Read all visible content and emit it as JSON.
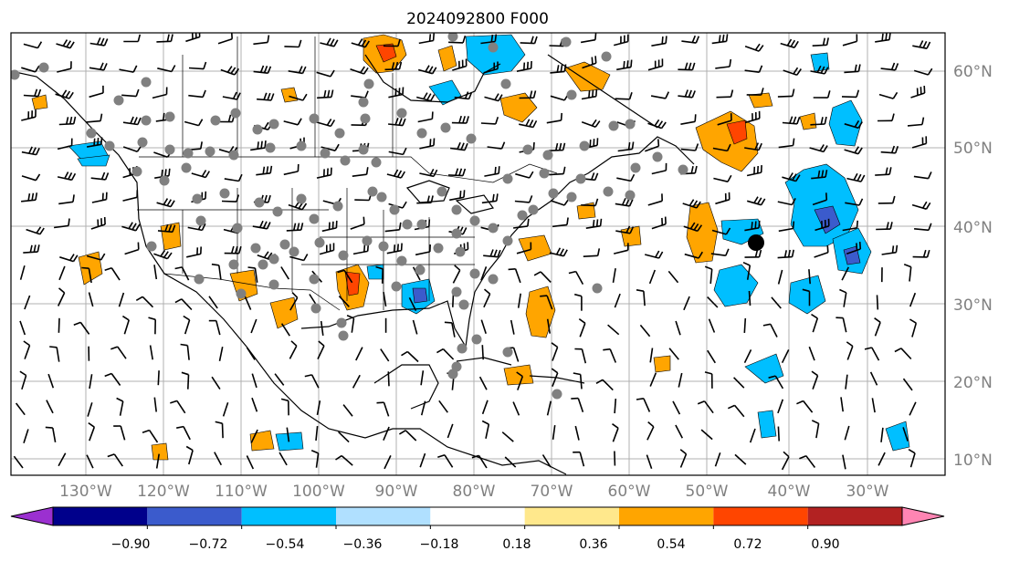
{
  "title": "2024092800 F000",
  "lat_labels": [
    "60°N",
    "50°N",
    "40°N",
    "30°N",
    "20°N",
    "10°N"
  ],
  "lon_labels": [
    "130°W",
    "120°W",
    "110°W",
    "100°W",
    "90°W",
    "80°W",
    "70°W",
    "60°W",
    "50°W",
    "40°W",
    "30°W"
  ],
  "colorbar": {
    "colors": [
      "#9b30d0",
      "#00008b",
      "#3b5bcc",
      "#00bfff",
      "#b0e0ff",
      "#ffffff",
      "#ffe88c",
      "#ffa500",
      "#ff4500",
      "#b22222",
      "#ff85b3"
    ],
    "tick_labels": [
      "−0.90",
      "−0.72",
      "−0.54",
      "−0.36",
      "−0.18",
      "0.18",
      "0.36",
      "0.54",
      "0.72",
      "0.90"
    ]
  },
  "palette": {
    "coast": "#000000",
    "grid": "#b0b0b0",
    "station": "#808080",
    "positive": "#ffa500",
    "strong_positive": "#ff4500",
    "negative": "#00bfff",
    "strong_negative": "#3b5bcc"
  }
}
